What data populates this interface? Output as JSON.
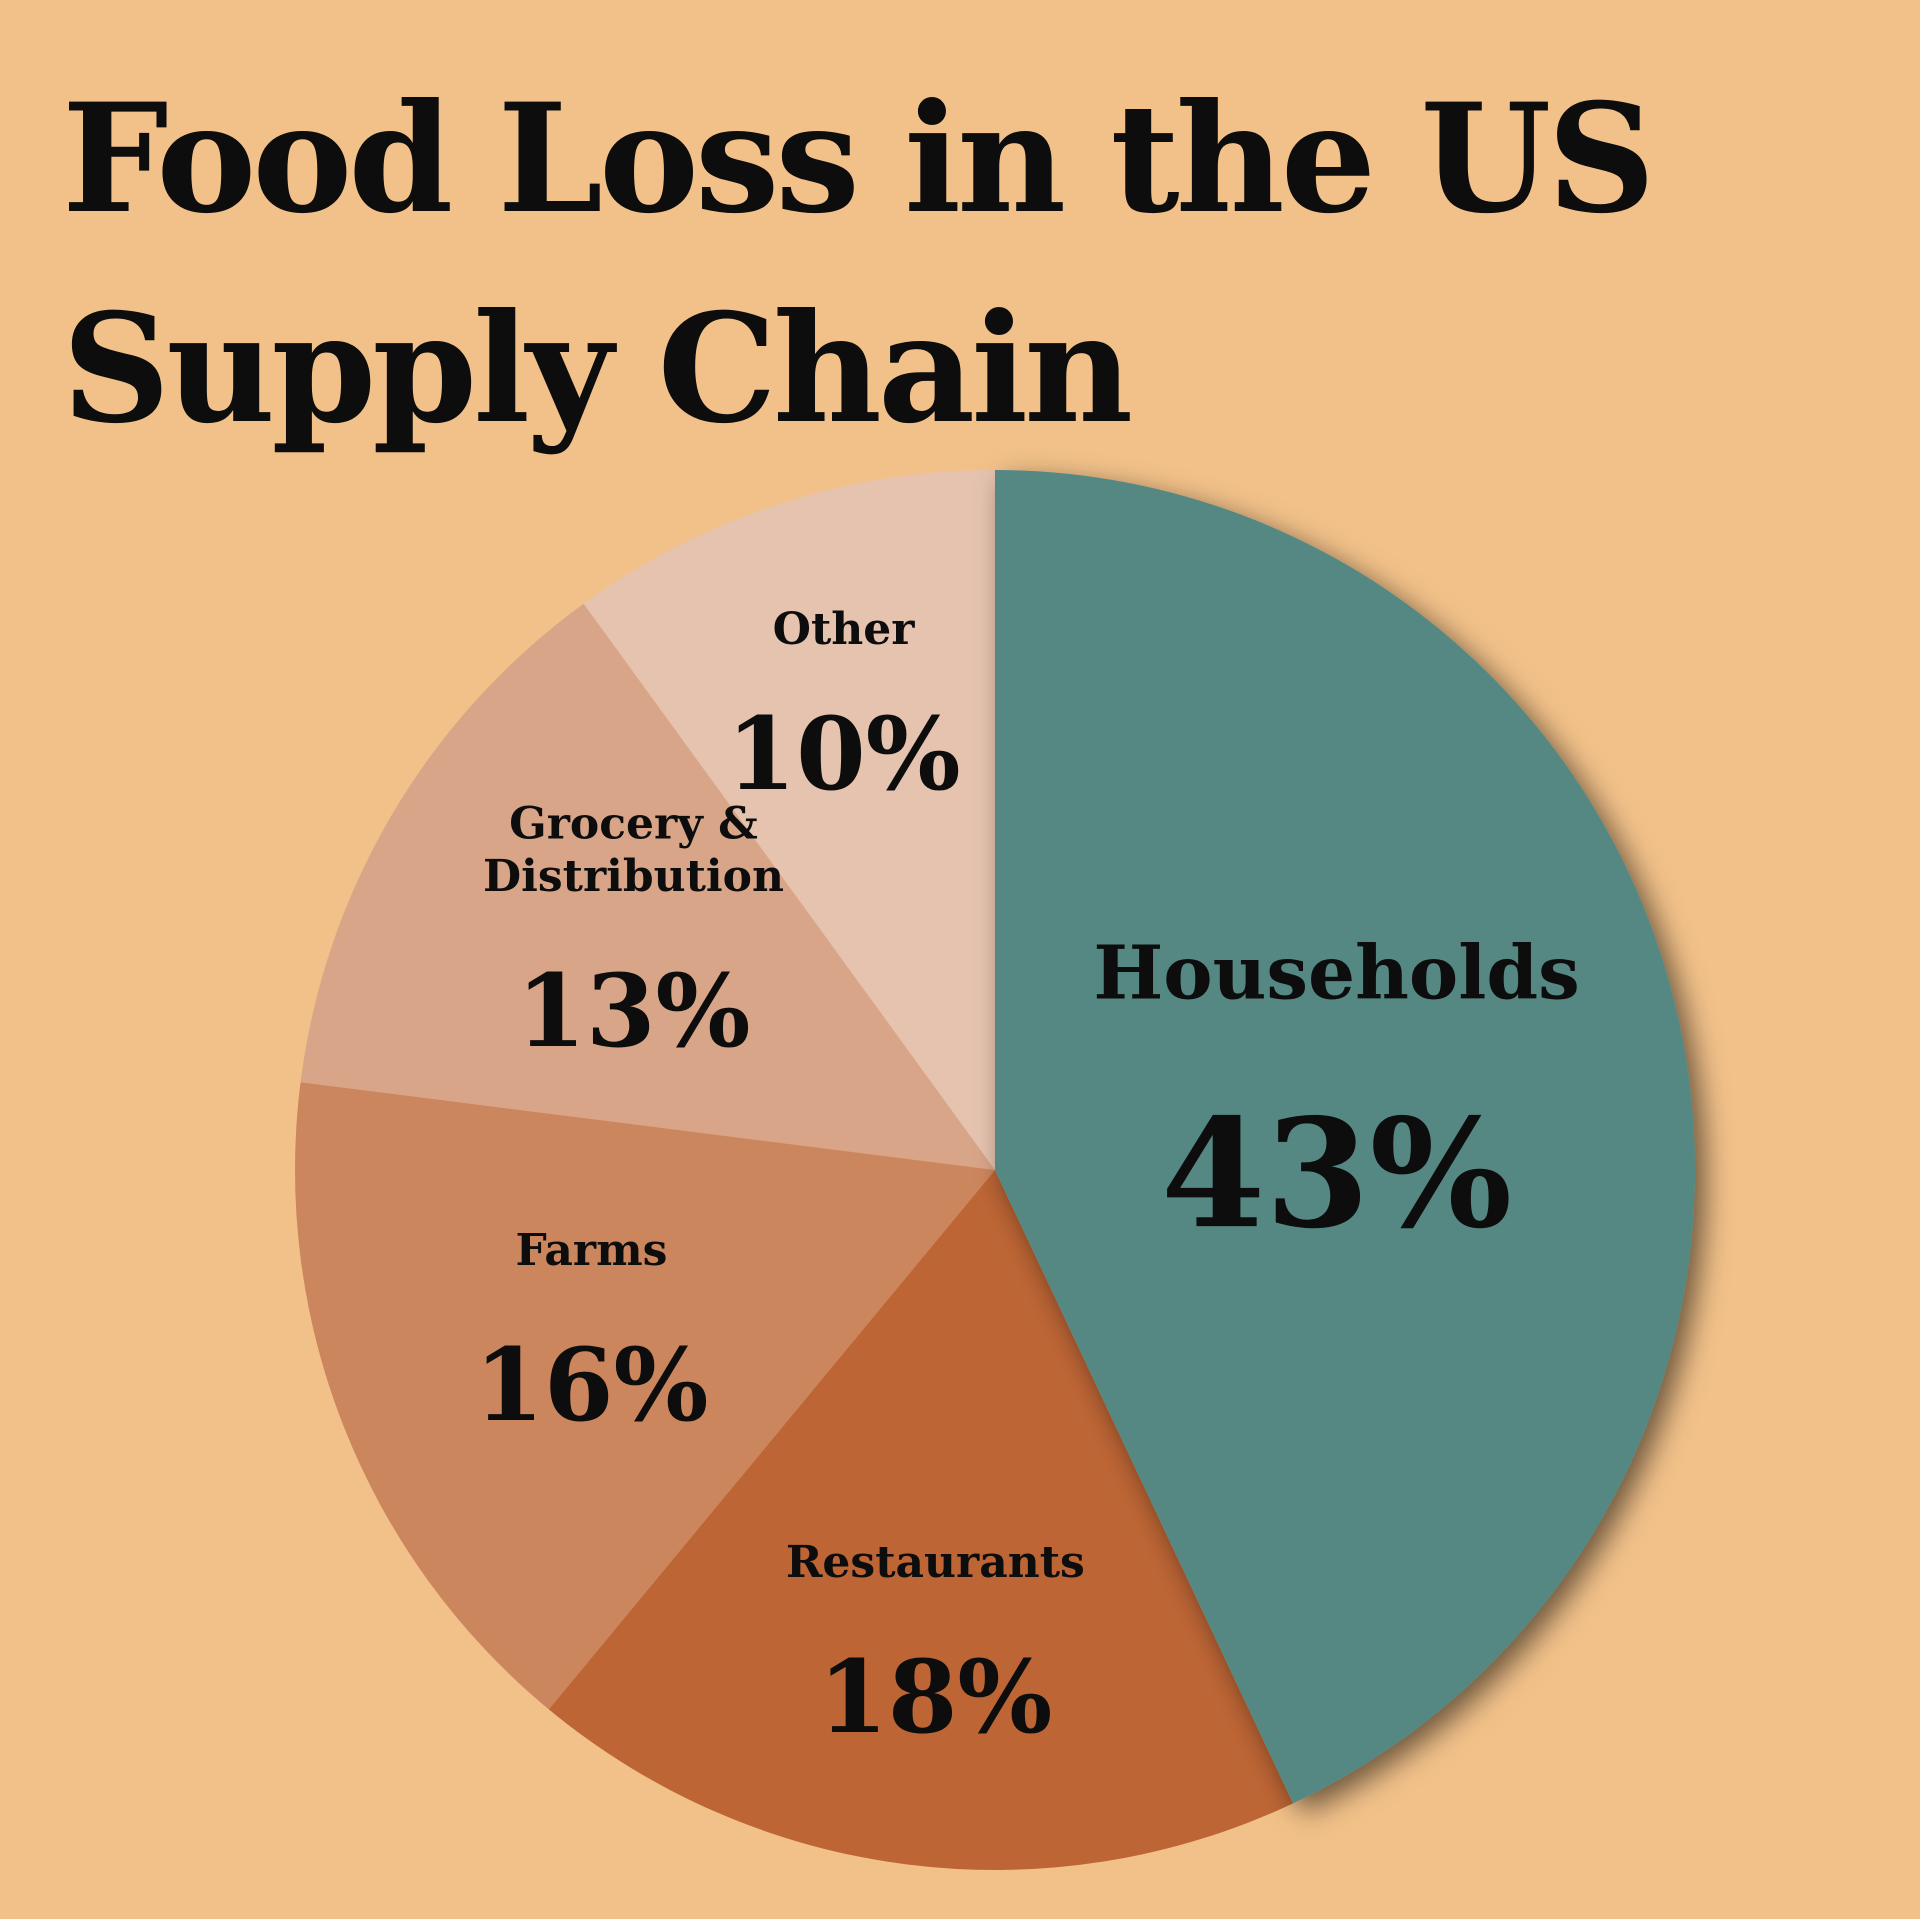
{
  "chart_data": {
    "type": "pie",
    "title": "Food Loss in the US Supply Chain",
    "slices": [
      {
        "label": "Households",
        "value": 43,
        "display": "43%",
        "color": "#548883"
      },
      {
        "label": "Restaurants",
        "value": 18,
        "display": "18%",
        "color": "#BD6535"
      },
      {
        "label": "Farms",
        "value": 16,
        "display": "16%",
        "color": "#CC865E"
      },
      {
        "label": "Grocery & Distribution",
        "value": 13,
        "display": "13%",
        "color": "#D9A588"
      },
      {
        "label": "Other",
        "value": 10,
        "display": "10%",
        "color": "#E5C3AF"
      }
    ],
    "start": "top",
    "direction": "clockwise",
    "background": "#F2C189",
    "legend": "none"
  }
}
